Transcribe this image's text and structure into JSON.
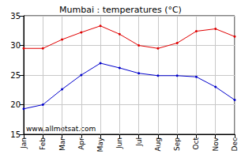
{
  "chart_data": {
    "type": "line",
    "title": "Mumbai : temperatures (°C)",
    "categories": [
      "Jan",
      "Feb",
      "Mar",
      "Apr",
      "May",
      "Jun",
      "Jul",
      "Aug",
      "Sep",
      "Oct",
      "Nov",
      "Dec"
    ],
    "series": [
      {
        "color": "#e00000",
        "values": [
          29.5,
          29.5,
          31.0,
          32.2,
          33.3,
          31.9,
          30.0,
          29.5,
          30.4,
          32.4,
          32.8,
          31.5
        ]
      },
      {
        "color": "#0000cc",
        "values": [
          19.3,
          20.0,
          22.6,
          25.0,
          27.0,
          26.2,
          25.3,
          24.9,
          24.9,
          24.7,
          23.0,
          20.8
        ]
      }
    ],
    "ylim": [
      15,
      35
    ],
    "yticks": [
      15,
      20,
      25,
      30,
      35
    ],
    "grid": true,
    "marker": "circle",
    "annotation": "www.allmetsat.com"
  }
}
